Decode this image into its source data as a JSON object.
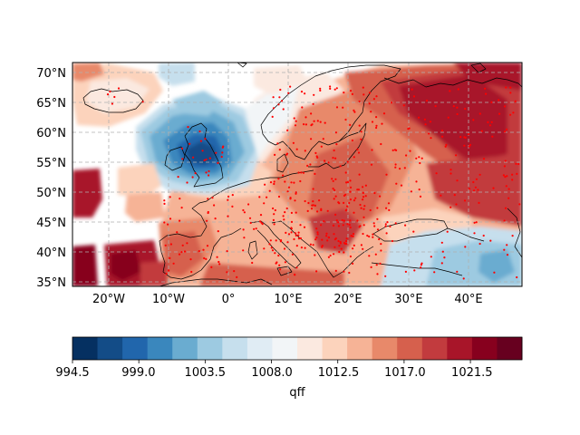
{
  "map": {
    "lat_labels": [
      "70°N",
      "65°N",
      "60°N",
      "55°N",
      "50°N",
      "45°N",
      "40°N",
      "35°N"
    ],
    "lon_labels": [
      "20°W",
      "10°W",
      "0°",
      "10°E",
      "20°E",
      "30°E",
      "40°E"
    ]
  },
  "colorbar": {
    "label": "qff",
    "tick_labels": [
      "994.5",
      "999.0",
      "1003.5",
      "1008.0",
      "1012.5",
      "1017.0",
      "1021.5"
    ],
    "colors": [
      "#053061",
      "#134c87",
      "#2166ac",
      "#3a87bd",
      "#6aacd0",
      "#9dcae1",
      "#c6dfed",
      "#e0ecf4",
      "#f2f5f7",
      "#fbe9e0",
      "#fcd3bc",
      "#f6b396",
      "#e8896a",
      "#d6604d",
      "#c23b3e",
      "#a81529",
      "#87001e",
      "#67001f"
    ]
  },
  "chart_data": {
    "type": "heatmap",
    "title": "",
    "colorbar_label": "qff",
    "colorbar_range": [
      994.5,
      1025.0
    ],
    "colorbar_ticks": [
      994.5,
      999.0,
      1003.5,
      1008.0,
      1012.5,
      1017.0,
      1021.5
    ],
    "xlim": [
      -26,
      49
    ],
    "ylim": [
      34.5,
      72
    ],
    "xticks": [
      -20,
      -10,
      0,
      10,
      20,
      30,
      40
    ],
    "yticks": [
      70,
      65,
      60,
      55,
      50,
      45,
      40,
      35
    ],
    "grid": true,
    "pressure_centers": [
      {
        "lon": -3.0,
        "lat": 55.0,
        "value": 996
      },
      {
        "lon": -6.0,
        "lat": 68.5,
        "value": 1006
      },
      {
        "lon": 40.0,
        "lat": 38.0,
        "value": 1005
      },
      {
        "lon": 38.0,
        "lat": 65.0,
        "value": 1025
      },
      {
        "lon": 46.0,
        "lat": 59.0,
        "value": 1024
      },
      {
        "lon": -24.0,
        "lat": 37.0,
        "value": 1025
      },
      {
        "lon": -16.0,
        "lat": 38.0,
        "value": 1024
      },
      {
        "lon": -24.0,
        "lat": 49.0,
        "value": 1022
      },
      {
        "lon": 20.0,
        "lat": 46.0,
        "value": 1020
      },
      {
        "lon": 12.0,
        "lat": 53.0,
        "value": 1017
      },
      {
        "lon": -20.0,
        "lat": 64.5,
        "value": 1013
      }
    ]
  }
}
